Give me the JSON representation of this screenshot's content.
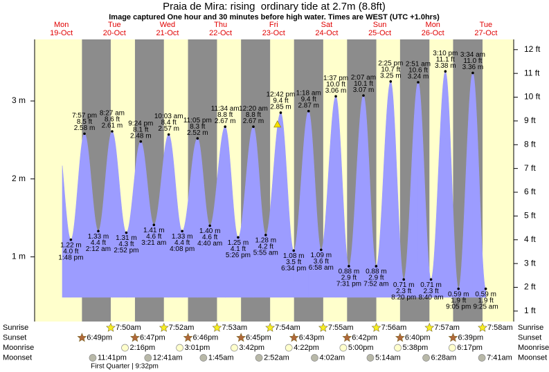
{
  "chart_data": {
    "type": "area",
    "title": "Praia de Mira: rising  ordinary tide at 2.7m (8.8ft)",
    "subtitle": "Image captured One hour and 30 minutes before high water. Times are WEST (UTC +1.0hrs)",
    "days": [
      {
        "weekday": "Mon",
        "date": "19-Oct"
      },
      {
        "weekday": "Tue",
        "date": "20-Oct"
      },
      {
        "weekday": "Wed",
        "date": "21-Oct"
      },
      {
        "weekday": "Thu",
        "date": "22-Oct"
      },
      {
        "weekday": "Fri",
        "date": "23-Oct"
      },
      {
        "weekday": "Sat",
        "date": "24-Oct"
      },
      {
        "weekday": "Sun",
        "date": "25-Oct"
      },
      {
        "weekday": "Mon",
        "date": "26-Oct"
      },
      {
        "weekday": "Tue",
        "date": "27-Oct"
      }
    ],
    "x": [
      "19-Oct",
      "19-Oct",
      "20-Oct",
      "20-Oct",
      "20-Oct",
      "20-Oct",
      "21-Oct",
      "21-Oct",
      "21-Oct",
      "21-Oct",
      "22-Oct",
      "22-Oct",
      "22-Oct",
      "23-Oct",
      "23-Oct",
      "23-Oct",
      "23-Oct",
      "24-Oct",
      "24-Oct",
      "24-Oct",
      "24-Oct",
      "25-Oct",
      "25-Oct",
      "25-Oct",
      "25-Oct",
      "26-Oct",
      "26-Oct",
      "26-Oct",
      "26-Oct",
      "27-Oct",
      "27-Oct"
    ],
    "times": [
      "1:48 pm",
      "7:57 pm",
      "2:12 am",
      "8:27 am",
      "2:52 pm",
      "9:24 pm",
      "3:21 am",
      "10:03 am",
      "4:08 pm",
      "11:05 pm",
      "4:40 am",
      "11:34 am",
      "5:26 pm",
      "12:20 am",
      "5:55 am",
      "12:42 pm",
      "6:34 pm",
      "1:18 am",
      "6:58 am",
      "1:37 pm",
      "7:31 pm",
      "2:07 am",
      "7:52 am",
      "2:25 pm",
      "8:20 pm",
      "2:51 am",
      "8:40 am",
      "3:10 pm",
      "9:05 pm",
      "3:34 am",
      "9:25 am"
    ],
    "values": [
      1.22,
      2.58,
      1.33,
      2.61,
      1.31,
      2.48,
      1.41,
      2.57,
      1.33,
      2.52,
      1.4,
      2.67,
      1.25,
      2.67,
      1.28,
      2.85,
      1.08,
      2.87,
      1.09,
      3.06,
      0.88,
      3.07,
      0.88,
      3.25,
      0.71,
      3.24,
      0.71,
      3.38,
      0.59,
      3.36,
      0.59
    ],
    "value_labels": [
      "1.22 m",
      "2.58 m",
      "1.33 m",
      "2.61 m",
      "1.31 m",
      "2.48 m",
      "1.41 m",
      "2.57 m",
      "1.33 m",
      "2.52 m",
      "1.40 m",
      "2.67 m",
      "1.25 m",
      "2.67 m",
      "1.28 m",
      "2.85 m",
      "1.08 m",
      "2.87 m",
      "1.09 m",
      "3.06 m",
      "0.88 m",
      "3.07 m",
      "0.88 m",
      "3.25 m",
      "0.71 m",
      "3.24 m",
      "0.71 m",
      "3.38 m",
      "0.59 m",
      "3.36 m",
      "0.59 m"
    ],
    "ft_labels": [
      "4.0 ft",
      "8.5 ft",
      "4.4 ft",
      "8.6 ft",
      "4.3 ft",
      "8.1 ft",
      "4.6 ft",
      "8.4 ft",
      "4.4 ft",
      "8.3 ft",
      "4.6 ft",
      "8.8 ft",
      "4.1 ft",
      "8.8 ft",
      "4.2 ft",
      "9.4 ft",
      "3.5 ft",
      "9.4 ft",
      "3.6 ft",
      "10.0 ft",
      "2.9 ft",
      "10.1 ft",
      "2.9 ft",
      "10.7 ft",
      "2.3 ft",
      "10.6 ft",
      "2.3 ft",
      "11.1 ft",
      "1.9 ft",
      "11.0 ft",
      "1.9 ft"
    ],
    "color": "#9c9cff",
    "ylim": [
      0.17,
      3.79
    ],
    "yticks": [
      {
        "value": 1,
        "label": "1 m"
      },
      {
        "value": 2,
        "label": "2 m"
      },
      {
        "value": 3,
        "label": "3 m"
      }
    ],
    "y2lim": [
      0.56,
      12.43
    ],
    "y2ticks": [
      {
        "value": 1,
        "label": "1 ft"
      },
      {
        "value": 2,
        "label": "2 ft"
      },
      {
        "value": 3,
        "label": "3 ft"
      },
      {
        "value": 4,
        "label": "4 ft"
      },
      {
        "value": 5,
        "label": "5 ft"
      },
      {
        "value": 6,
        "label": "6 ft"
      },
      {
        "value": 7,
        "label": "7 ft"
      },
      {
        "value": 8,
        "label": "8 ft"
      },
      {
        "value": 9,
        "label": "9 ft"
      },
      {
        "value": 10,
        "label": "10 ft"
      },
      {
        "value": 11,
        "label": "11 ft"
      },
      {
        "value": 12,
        "label": "12 ft"
      }
    ],
    "current": {
      "date": "23-Oct",
      "time": "11:12 am",
      "value": 2.7,
      "color": "#f5e000"
    },
    "rows": [
      {
        "name": "Sunrise",
        "icon": "star",
        "color": "#f7ee20",
        "dates": [
          "20-Oct",
          "21-Oct",
          "22-Oct",
          "23-Oct",
          "24-Oct",
          "25-Oct",
          "26-Oct",
          "27-Oct"
        ],
        "times": [
          "7:50am",
          "7:52am",
          "7:53am",
          "7:54am",
          "7:55am",
          "7:56am",
          "7:57am",
          "7:58am"
        ]
      },
      {
        "name": "Sunset",
        "icon": "star",
        "color": "#b0683a",
        "dates": [
          "19-Oct",
          "20-Oct",
          "21-Oct",
          "22-Oct",
          "23-Oct",
          "24-Oct",
          "25-Oct",
          "26-Oct"
        ],
        "times": [
          "6:49pm",
          "6:47pm",
          "6:46pm",
          "6:45pm",
          "6:43pm",
          "6:42pm",
          "6:40pm",
          "6:39pm"
        ]
      },
      {
        "name": "Moonrise",
        "icon": "moon",
        "color": "#ffffcc",
        "dates": [
          "20-Oct",
          "21-Oct",
          "22-Oct",
          "23-Oct",
          "24-Oct",
          "25-Oct",
          "26-Oct"
        ],
        "times": [
          "2:16pm",
          "3:01pm",
          "3:42pm",
          "4:22pm",
          "5:00pm",
          "5:38pm",
          "6:17pm"
        ]
      },
      {
        "name": "Moonset",
        "icon": "moon",
        "color": "#b8b8a8",
        "dates": [
          "19-Oct",
          "21-Oct",
          "22-Oct",
          "23-Oct",
          "24-Oct",
          "25-Oct",
          "26-Oct",
          "27-Oct"
        ],
        "times": [
          "11:41pm",
          "12:41am",
          "1:45am",
          "2:52am",
          "4:02am",
          "5:14am",
          "6:28am",
          "7:41am"
        ]
      }
    ],
    "moon_phase": "First Quarter | 9:32pm"
  }
}
